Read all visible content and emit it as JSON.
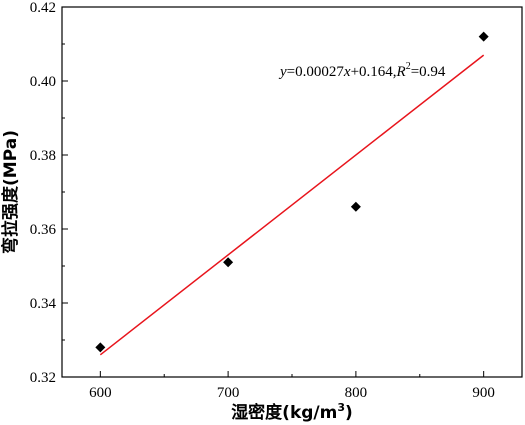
{
  "chart_data": {
    "type": "scatter",
    "xlabel": "湿密度(kg/m",
    "xlabel_sup": "3",
    "xlabel_close": ")",
    "ylabel": "弯拉强度(MPa)",
    "xlim": [
      570,
      930
    ],
    "ylim": [
      0.32,
      0.42
    ],
    "xticks": [
      600,
      700,
      800,
      900
    ],
    "xtick_labels": [
      "600",
      "700",
      "800",
      "900"
    ],
    "yticks": [
      0.32,
      0.34,
      0.36,
      0.38,
      0.4,
      0.42
    ],
    "ytick_labels": [
      "0.32",
      "0.34",
      "0.36",
      "0.38",
      "0.40",
      "0.42"
    ],
    "grid": false,
    "points": [
      {
        "x": 600,
        "y": 0.328
      },
      {
        "x": 700,
        "y": 0.351
      },
      {
        "x": 800,
        "y": 0.366
      },
      {
        "x": 900,
        "y": 0.412
      }
    ],
    "fit": {
      "slope": 0.00027,
      "intercept": 0.164,
      "x_range": [
        600,
        900
      ],
      "color": "#e8141c"
    },
    "marker_color": "#000000",
    "annotation": {
      "y_var": "y",
      "eq_mid": "=0.00027",
      "x_var": "x",
      "eq_tail": "+0.164,",
      "r_var": "R",
      "r_sup": "2",
      "r_val": "=0.94"
    }
  }
}
